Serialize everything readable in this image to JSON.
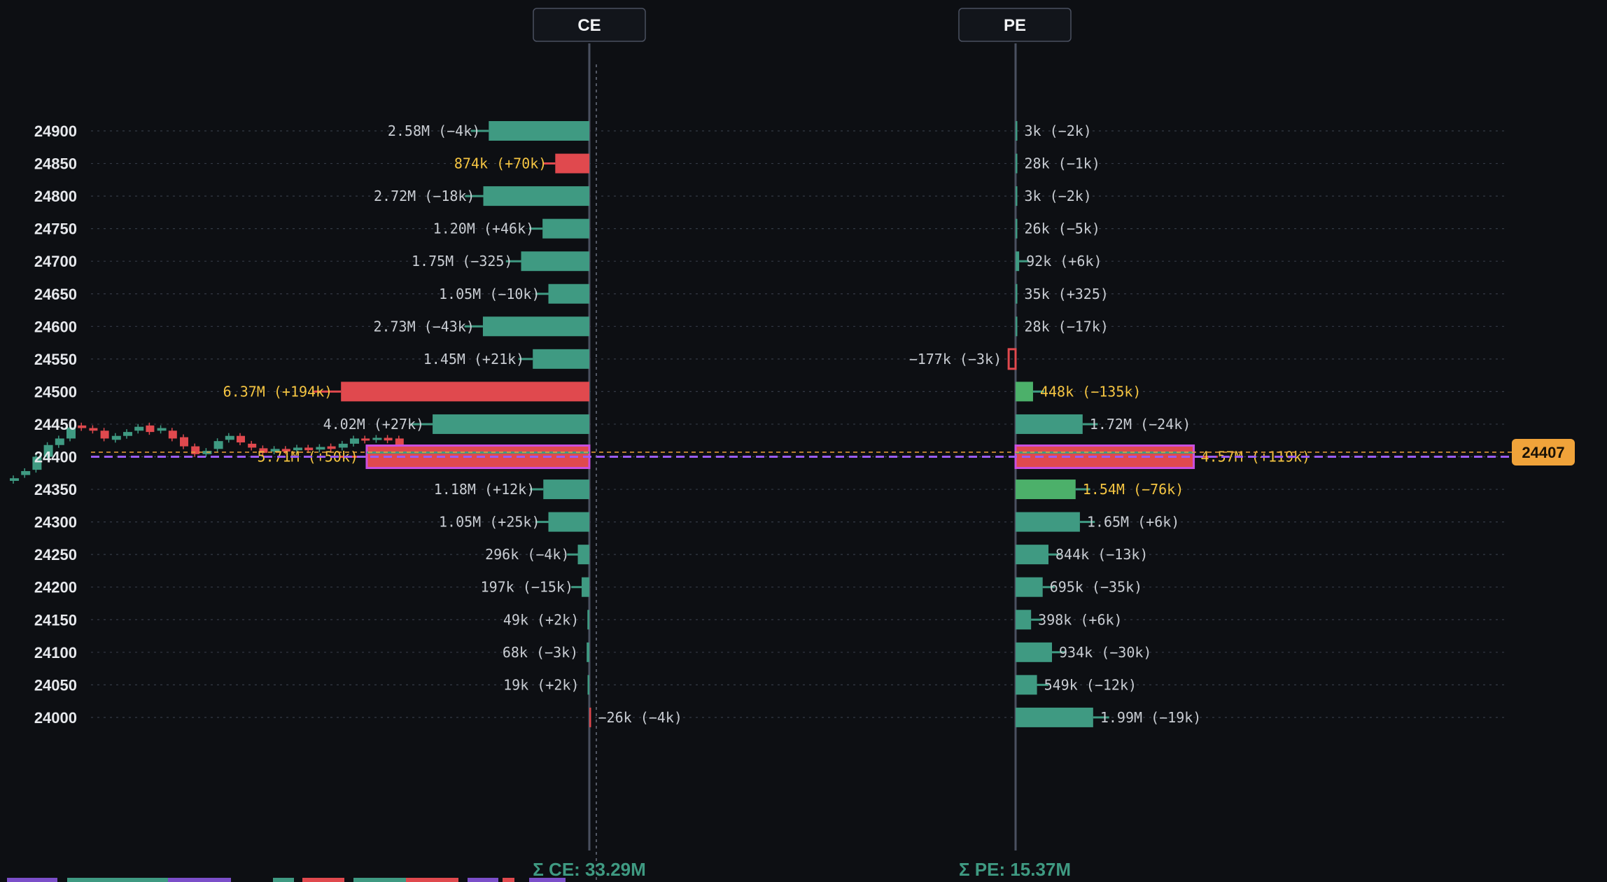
{
  "chart_data": {
    "type": "bar",
    "title": "",
    "columns": {
      "ce": "CE",
      "pe": "PE"
    },
    "strikes": [
      24900,
      24850,
      24800,
      24750,
      24700,
      24650,
      24600,
      24550,
      24500,
      24450,
      24400,
      24350,
      24300,
      24250,
      24200,
      24150,
      24100,
      24050,
      24000
    ],
    "ce": [
      {
        "strike": 24900,
        "oi": 2.58,
        "label": "2.58M (−4k)",
        "highlight": false,
        "color": "#3f9a82"
      },
      {
        "strike": 24850,
        "oi": 0.874,
        "label": "874k (+70k)",
        "highlight": true,
        "color": "#e0494e"
      },
      {
        "strike": 24800,
        "oi": 2.72,
        "label": "2.72M (−18k)",
        "highlight": false,
        "color": "#3f9a82"
      },
      {
        "strike": 24750,
        "oi": 1.2,
        "label": "1.20M (+46k)",
        "highlight": false,
        "color": "#3f9a82"
      },
      {
        "strike": 24700,
        "oi": 1.75,
        "label": "1.75M (−325)",
        "highlight": false,
        "color": "#3f9a82"
      },
      {
        "strike": 24650,
        "oi": 1.05,
        "label": "1.05M (−10k)",
        "highlight": false,
        "color": "#3f9a82"
      },
      {
        "strike": 24600,
        "oi": 2.73,
        "label": "2.73M (−43k)",
        "highlight": false,
        "color": "#3f9a82"
      },
      {
        "strike": 24550,
        "oi": 1.45,
        "label": "1.45M (+21k)",
        "highlight": false,
        "color": "#3f9a82"
      },
      {
        "strike": 24500,
        "oi": 6.37,
        "label": "6.37M (+194k)",
        "highlight": true,
        "color": "#e0494e"
      },
      {
        "strike": 24450,
        "oi": 4.02,
        "label": "4.02M (+27k)",
        "highlight": false,
        "color": "#3f9a82"
      },
      {
        "strike": 24400,
        "oi": 5.71,
        "label": "5.71M (+50k)",
        "highlight": true,
        "color": "#e0494e",
        "atm": true
      },
      {
        "strike": 24350,
        "oi": 1.18,
        "label": "1.18M (+12k)",
        "highlight": false,
        "color": "#3f9a82"
      },
      {
        "strike": 24300,
        "oi": 1.05,
        "label": "1.05M (+25k)",
        "highlight": false,
        "color": "#3f9a82"
      },
      {
        "strike": 24250,
        "oi": 0.296,
        "label": "296k (−4k)",
        "highlight": false,
        "color": "#3f9a82"
      },
      {
        "strike": 24200,
        "oi": 0.197,
        "label": "197k (−15k)",
        "highlight": false,
        "color": "#3f9a82"
      },
      {
        "strike": 24150,
        "oi": 0.049,
        "label": "49k (+2k)",
        "highlight": false,
        "color": "#3f9a82"
      },
      {
        "strike": 24100,
        "oi": 0.068,
        "label": "68k (−3k)",
        "highlight": false,
        "color": "#3f9a82"
      },
      {
        "strike": 24050,
        "oi": 0.019,
        "label": "19k (+2k)",
        "highlight": false,
        "color": "#3f9a82"
      },
      {
        "strike": 24000,
        "oi": -0.026,
        "label": "−26k (−4k)",
        "highlight": false,
        "color": "#e0494e"
      }
    ],
    "pe": [
      {
        "strike": 24900,
        "oi": 0.003,
        "label": "3k (−2k)",
        "highlight": false,
        "color": "#3f9a82"
      },
      {
        "strike": 24850,
        "oi": 0.028,
        "label": "28k (−1k)",
        "highlight": false,
        "color": "#3f9a82"
      },
      {
        "strike": 24800,
        "oi": 0.003,
        "label": "3k (−2k)",
        "highlight": false,
        "color": "#3f9a82"
      },
      {
        "strike": 24750,
        "oi": 0.026,
        "label": "26k (−5k)",
        "highlight": false,
        "color": "#3f9a82"
      },
      {
        "strike": 24700,
        "oi": 0.092,
        "label": "92k (+6k)",
        "highlight": false,
        "color": "#3f9a82"
      },
      {
        "strike": 24650,
        "oi": 0.035,
        "label": "35k (+325)",
        "highlight": false,
        "color": "#3f9a82"
      },
      {
        "strike": 24600,
        "oi": 0.028,
        "label": "28k (−17k)",
        "highlight": false,
        "color": "#3f9a82"
      },
      {
        "strike": 24550,
        "oi": -0.177,
        "label": "−177k (−3k)",
        "highlight": false,
        "color": "#e0494e",
        "hollow": true
      },
      {
        "strike": 24500,
        "oi": 0.448,
        "label": "448k (−135k)",
        "highlight": true,
        "color": "#4cb06a"
      },
      {
        "strike": 24450,
        "oi": 1.72,
        "label": "1.72M (−24k)",
        "highlight": false,
        "color": "#3f9a82"
      },
      {
        "strike": 24400,
        "oi": 4.57,
        "label": "4.57M (+119k)",
        "highlight": true,
        "color": "#e0494e",
        "atm": true
      },
      {
        "strike": 24350,
        "oi": 1.54,
        "label": "1.54M (−76k)",
        "highlight": true,
        "color": "#4cb06a"
      },
      {
        "strike": 24300,
        "oi": 1.65,
        "label": "1.65M (+6k)",
        "highlight": false,
        "color": "#3f9a82"
      },
      {
        "strike": 24250,
        "oi": 0.844,
        "label": "844k (−13k)",
        "highlight": false,
        "color": "#3f9a82"
      },
      {
        "strike": 24200,
        "oi": 0.695,
        "label": "695k (−35k)",
        "highlight": false,
        "color": "#3f9a82"
      },
      {
        "strike": 24150,
        "oi": 0.398,
        "label": "398k (+6k)",
        "highlight": false,
        "color": "#3f9a82"
      },
      {
        "strike": 24100,
        "oi": 0.934,
        "label": "934k (−30k)",
        "highlight": false,
        "color": "#3f9a82"
      },
      {
        "strike": 24050,
        "oi": 0.549,
        "label": "549k (−12k)",
        "highlight": false,
        "color": "#3f9a82"
      },
      {
        "strike": 24000,
        "oi": 1.99,
        "label": "1.99M (−19k)",
        "highlight": false,
        "color": "#3f9a82"
      }
    ],
    "spot_price": 24407,
    "spot_label": "24407",
    "atm_strike": 24400,
    "totals": {
      "ce": "Σ CE: 33.29M",
      "pe": "Σ PE: 15.37M"
    },
    "candles": [
      {
        "o": 24363,
        "c": 24367,
        "up": true
      },
      {
        "o": 24372,
        "c": 24378,
        "up": true
      },
      {
        "o": 24380,
        "c": 24400,
        "up": true
      },
      {
        "o": 24400,
        "c": 24418,
        "up": true
      },
      {
        "o": 24418,
        "c": 24428,
        "up": true
      },
      {
        "o": 24428,
        "c": 24445,
        "up": true
      },
      {
        "o": 24448,
        "c": 24444,
        "up": false
      },
      {
        "o": 24444,
        "c": 24440,
        "up": false
      },
      {
        "o": 24440,
        "c": 24428,
        "up": false
      },
      {
        "o": 24426,
        "c": 24432,
        "up": true
      },
      {
        "o": 24432,
        "c": 24438,
        "up": true
      },
      {
        "o": 24440,
        "c": 24446,
        "up": true
      },
      {
        "o": 24448,
        "c": 24438,
        "up": false
      },
      {
        "o": 24440,
        "c": 24444,
        "up": true
      },
      {
        "o": 24440,
        "c": 24428,
        "up": false
      },
      {
        "o": 24430,
        "c": 24416,
        "up": false
      },
      {
        "o": 24416,
        "c": 24404,
        "up": false
      },
      {
        "o": 24404,
        "c": 24409,
        "up": true
      },
      {
        "o": 24412,
        "c": 24424,
        "up": true
      },
      {
        "o": 24426,
        "c": 24432,
        "up": true
      },
      {
        "o": 24432,
        "c": 24422,
        "up": false
      },
      {
        "o": 24420,
        "c": 24414,
        "up": false
      },
      {
        "o": 24413,
        "c": 24406,
        "up": false
      },
      {
        "o": 24408,
        "c": 24412,
        "up": true
      },
      {
        "o": 24412,
        "c": 24408,
        "up": false
      },
      {
        "o": 24410,
        "c": 24414,
        "up": true
      },
      {
        "o": 24414,
        "c": 24410,
        "up": false
      },
      {
        "o": 24411,
        "c": 24415,
        "up": true
      },
      {
        "o": 24416,
        "c": 24412,
        "up": false
      },
      {
        "o": 24414,
        "c": 24420,
        "up": true
      },
      {
        "o": 24420,
        "c": 24428,
        "up": true
      },
      {
        "o": 24428,
        "c": 24426,
        "up": false
      },
      {
        "o": 24427,
        "c": 24429,
        "up": true
      },
      {
        "o": 24429,
        "c": 24425,
        "up": false
      },
      {
        "o": 24428,
        "c": 24412,
        "up": false
      },
      {
        "o": 24412,
        "c": 24407,
        "up": false
      }
    ],
    "colors": {
      "background": "#0d0f13",
      "green": "#3f9a82",
      "bright_green": "#4cb06a",
      "red": "#e0494e",
      "highlight_text": "#f5c542",
      "normal_text": "#c9cdd3",
      "atm_line": "#9b5cf6",
      "spot_line": "#f0a33a",
      "axis_line": "#4a5060",
      "grid": "#343a46"
    }
  }
}
